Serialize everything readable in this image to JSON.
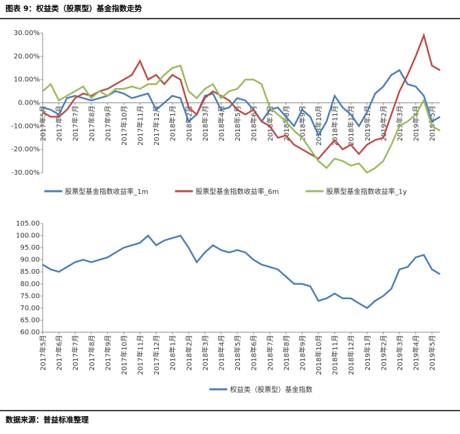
{
  "header": {
    "title": "图表 9：权益类（股票型）基金指数走势"
  },
  "footer": {
    "source": "数据来源：普益标准整理"
  },
  "chart_data": [
    {
      "type": "line",
      "categories": [
        "2017年5月",
        null,
        "2017年6月",
        null,
        "2017年7月",
        null,
        "2017年8月",
        null,
        "2017年9月",
        null,
        "2017年10月",
        null,
        "2017年11月",
        null,
        "2017年12月",
        null,
        "2018年1月",
        null,
        "2018年2月",
        null,
        "2018年3月",
        null,
        "2018年4月",
        null,
        "2018年5月",
        null,
        "2018年6月",
        null,
        "2018年7月",
        null,
        "2018年8月",
        null,
        "2018年9月",
        null,
        "2018年10月",
        null,
        "2018年11月",
        null,
        "2018年12月",
        null,
        "2019年1月",
        null,
        "2019年2月",
        null,
        "2019年3月",
        null,
        "2019年4月",
        null,
        "2019年5月",
        null
      ],
      "ylim": [
        -30,
        30
      ],
      "yticks": [
        {
          "value": -30,
          "label": "-30.00%"
        },
        {
          "value": -20,
          "label": "-20.00%"
        },
        {
          "value": -10,
          "label": "-10.00%"
        },
        {
          "value": 0,
          "label": "0.00%"
        },
        {
          "value": 10,
          "label": "10.00%"
        },
        {
          "value": 20,
          "label": "20.00%"
        },
        {
          "value": 30,
          "label": "30.00%"
        }
      ],
      "series": [
        {
          "name": "股票型基金指数收益率_1m",
          "color": "#4a7ebb",
          "values": [
            -2,
            -3,
            -5,
            2,
            3,
            2,
            1,
            2,
            3,
            5,
            4,
            2,
            3,
            4,
            -3,
            0,
            3,
            2,
            -8,
            -5,
            3,
            4,
            -3,
            -2,
            2,
            1,
            -3,
            -8,
            -3,
            -2,
            -6,
            -10,
            -3,
            -6,
            -14,
            -8,
            3,
            -2,
            -5,
            -10,
            -4,
            4,
            7,
            12,
            14,
            8,
            7,
            3,
            -8,
            -6
          ]
        },
        {
          "name": "股票型基金指数收益率_6m",
          "color": "#be4b48",
          "values": [
            -4,
            -6,
            -6,
            -3,
            2,
            4,
            3,
            5,
            6,
            8,
            10,
            12,
            18,
            10,
            12,
            8,
            12,
            10,
            -2,
            -5,
            2,
            5,
            3,
            1,
            -3,
            -5,
            -3,
            -8,
            -10,
            -15,
            -14,
            -18,
            -20,
            -22,
            -24,
            -20,
            -16,
            -20,
            -18,
            -22,
            -18,
            -16,
            -15,
            -5,
            5,
            12,
            20,
            29,
            16,
            14
          ]
        },
        {
          "name": "股票型基金指数收益率_1y",
          "color": "#9bbb59",
          "values": [
            5,
            8,
            1,
            3,
            5,
            7,
            2,
            5,
            3,
            6,
            6,
            7,
            6,
            8,
            8,
            12,
            15,
            16,
            5,
            2,
            6,
            8,
            2,
            5,
            6,
            10,
            10,
            8,
            -2,
            -5,
            -8,
            -12,
            -15,
            -20,
            -25,
            -28,
            -24,
            -25,
            -27,
            -26,
            -30,
            -28,
            -25,
            -18,
            -10,
            -8,
            -5,
            1,
            -10,
            -12
          ]
        }
      ]
    },
    {
      "type": "line",
      "categories": [
        "2017年5月",
        null,
        "2017年6月",
        null,
        "2017年7月",
        null,
        "2017年8月",
        null,
        "2017年9月",
        null,
        "2017年10月",
        null,
        "2017年11月",
        null,
        "2017年12月",
        null,
        "2018年1月",
        null,
        "2018年2月",
        null,
        "2018年3月",
        null,
        "2018年4月",
        null,
        "2018年5月",
        null,
        "2018年6月",
        null,
        "2018年7月",
        null,
        "2018年8月",
        null,
        "2018年9月",
        null,
        "2018年10月",
        null,
        "2018年11月",
        null,
        "2018年12月",
        null,
        "2019年1月",
        null,
        "2019年2月",
        null,
        "2019年3月",
        null,
        "2019年4月",
        null,
        "2019年5月",
        null
      ],
      "ylim": [
        60,
        105
      ],
      "yticks": [
        {
          "value": 60,
          "label": "60.00"
        },
        {
          "value": 65,
          "label": "65.00"
        },
        {
          "value": 70,
          "label": "70.00"
        },
        {
          "value": 75,
          "label": "75.00"
        },
        {
          "value": 80,
          "label": "80.00"
        },
        {
          "value": 85,
          "label": "85.00"
        },
        {
          "value": 90,
          "label": "90.00"
        },
        {
          "value": 95,
          "label": "95.00"
        },
        {
          "value": 100,
          "label": "100.00"
        },
        {
          "value": 105,
          "label": "105.00"
        }
      ],
      "series": [
        {
          "name": "权益类（股票型）基金指数",
          "color": "#4a7ebb",
          "values": [
            88,
            86,
            85,
            87,
            89,
            90,
            89,
            90,
            91,
            93,
            95,
            96,
            97,
            100,
            96,
            98,
            99,
            100,
            95,
            89,
            93,
            96,
            94,
            93,
            94,
            93,
            90,
            88,
            87,
            86,
            83,
            80,
            80,
            79,
            73,
            74,
            76,
            74,
            74,
            72,
            70,
            73,
            75,
            78,
            86,
            87,
            91,
            92,
            86,
            84
          ]
        }
      ]
    }
  ]
}
